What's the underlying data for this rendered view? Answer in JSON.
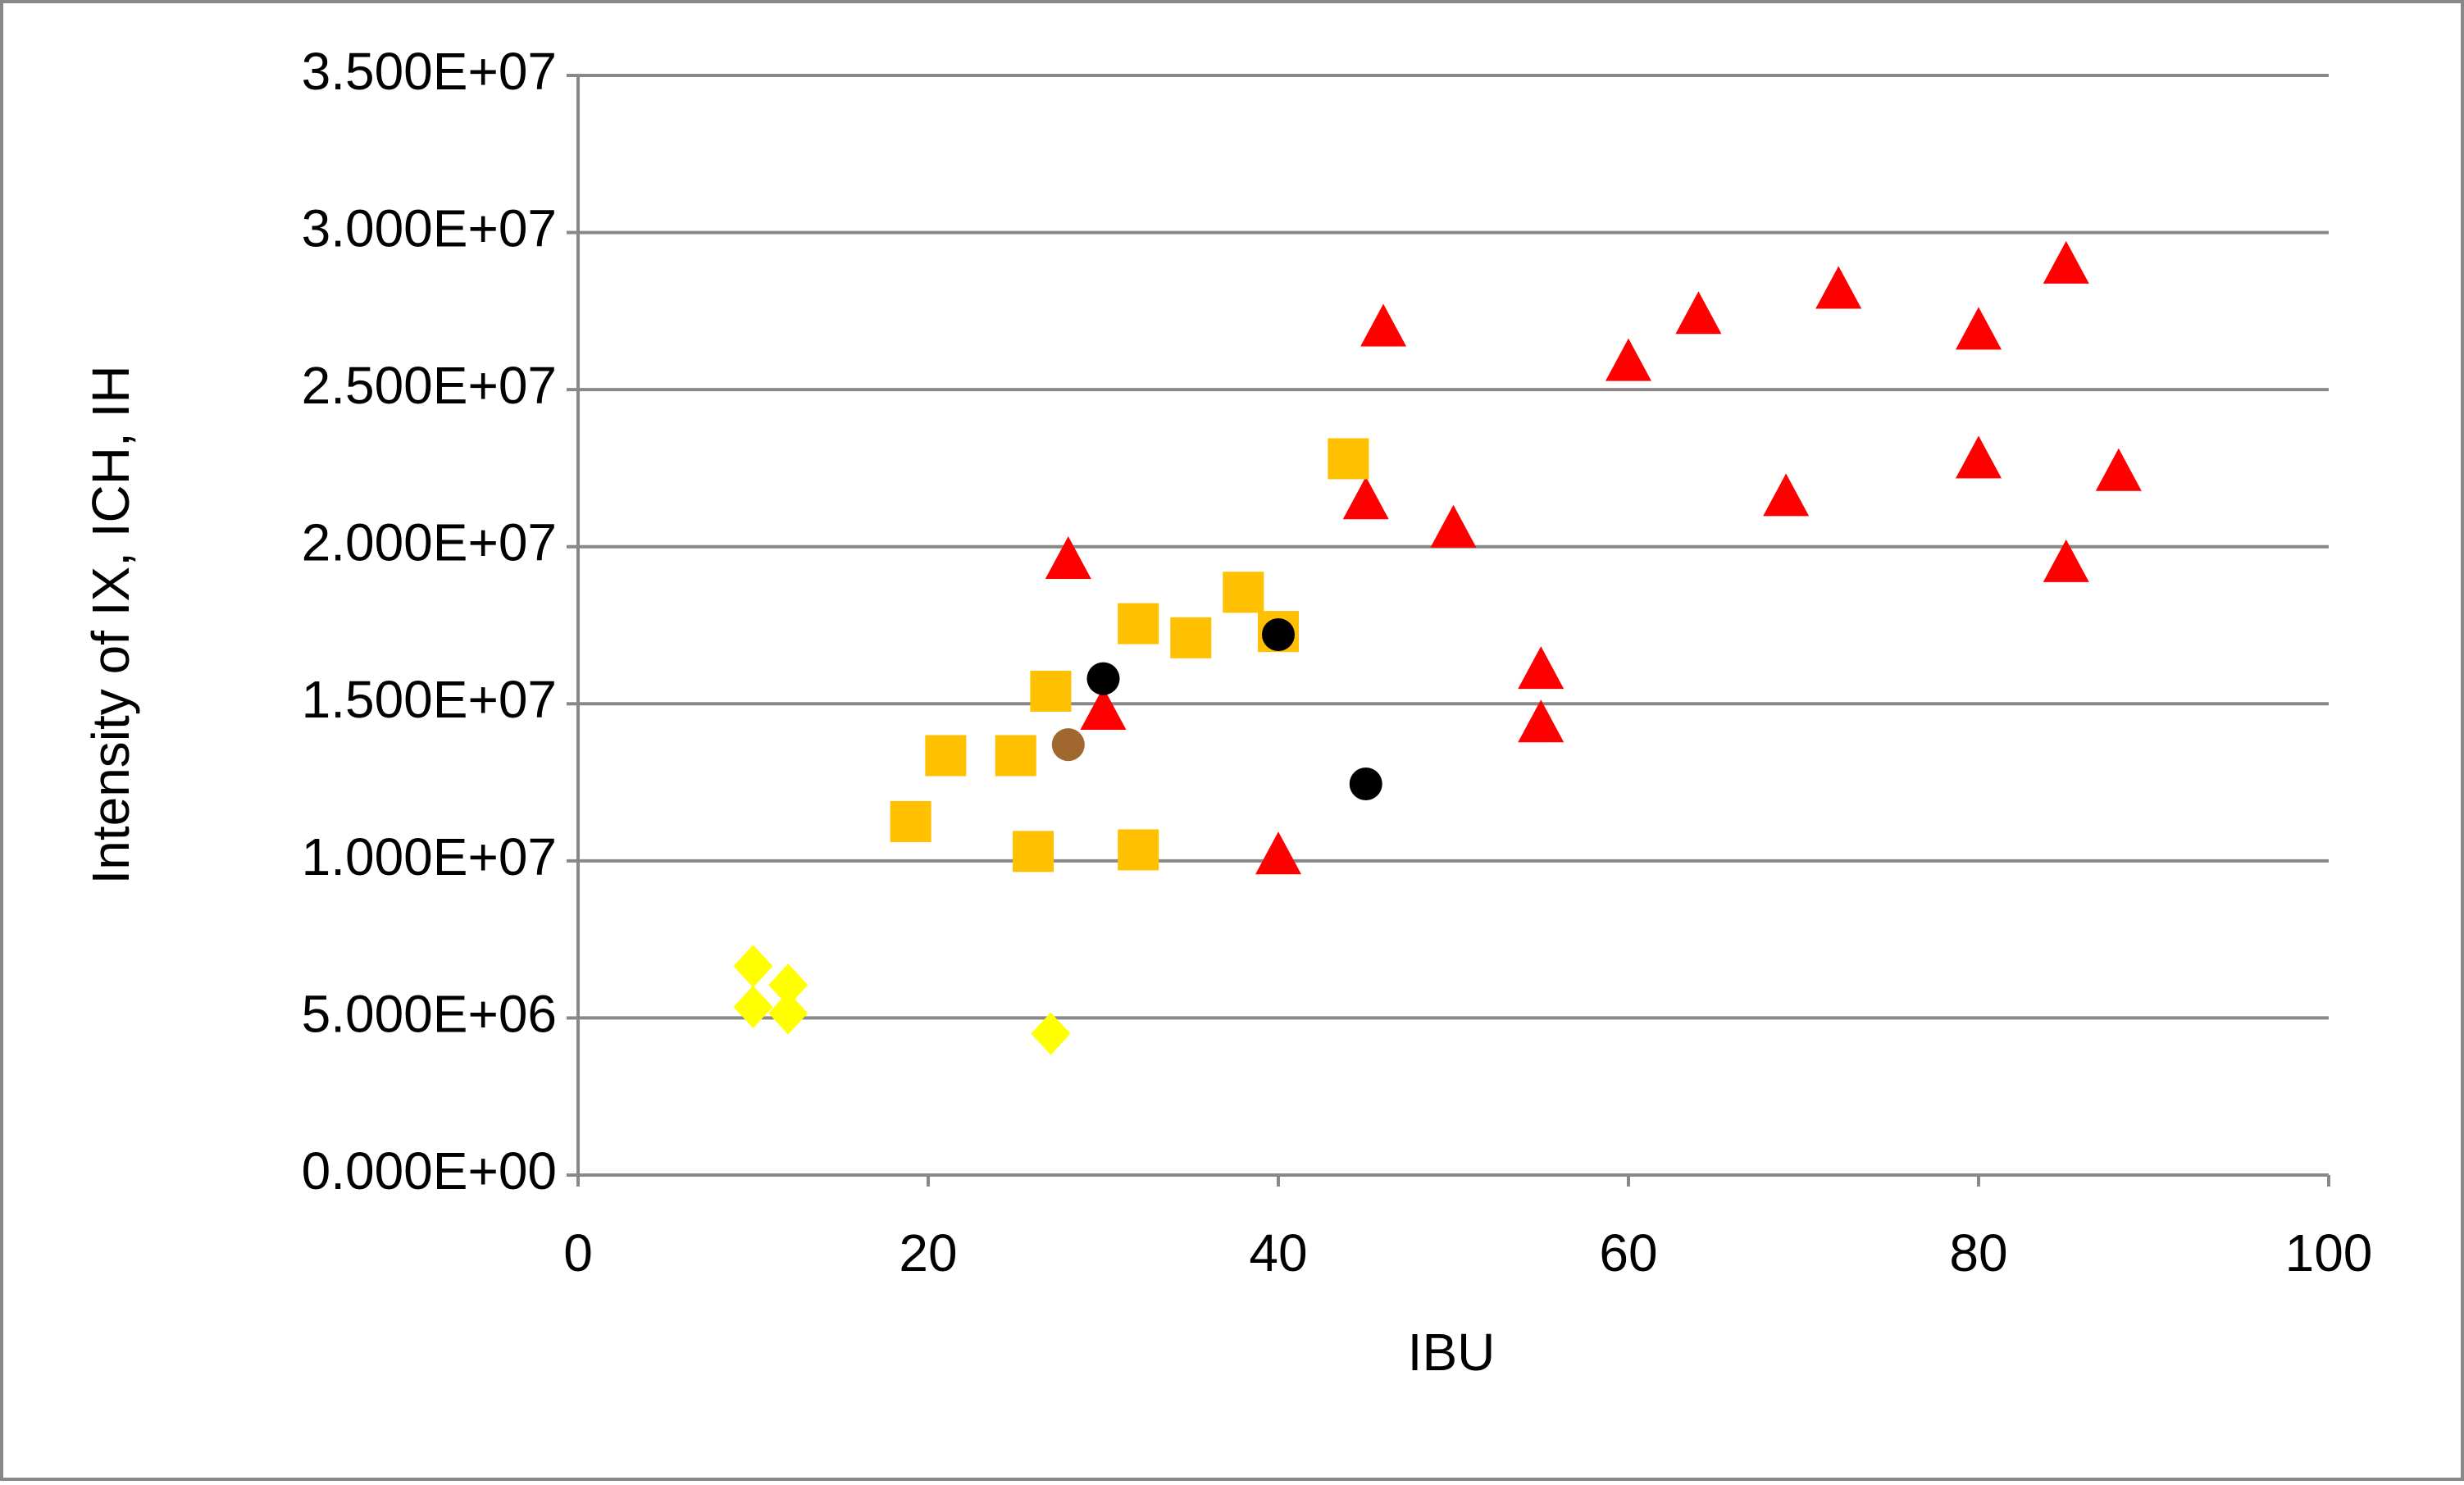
{
  "chart_data": {
    "type": "scatter",
    "xlabel": "IBU",
    "ylabel": "Intensity of IX, ICH, IH",
    "xlim": [
      0,
      100
    ],
    "xticks": [
      0,
      20,
      40,
      60,
      80,
      100
    ],
    "ylim": [
      0,
      35000000
    ],
    "yticks": [
      {
        "value": 0,
        "label": "0.000E+00"
      },
      {
        "value": 5000000,
        "label": "5.000E+06"
      },
      {
        "value": 10000000,
        "label": "1.000E+07"
      },
      {
        "value": 15000000,
        "label": "1.500E+07"
      },
      {
        "value": 20000000,
        "label": "2.000E+07"
      },
      {
        "value": 25000000,
        "label": "2.500E+07"
      },
      {
        "value": 30000000,
        "label": "3.000E+07"
      },
      {
        "value": 35000000,
        "label": "3.500E+07"
      }
    ],
    "grid": true,
    "series": [
      {
        "color": "#ff0000",
        "marker": "triangle",
        "x": [
          28,
          30,
          40,
          45,
          46,
          50,
          55,
          55,
          60,
          64,
          69,
          72,
          80,
          80,
          85,
          85,
          88
        ],
        "y": [
          19600000,
          14800000,
          10200000,
          21500000,
          27000000,
          20600000,
          16100000,
          14400000,
          25900000,
          27400000,
          21600000,
          28200000,
          26900000,
          22800000,
          29000000,
          19500000,
          22400000
        ]
      },
      {
        "color": "#ffc000",
        "marker": "square",
        "x": [
          19,
          21,
          25,
          26,
          27,
          32,
          32,
          35,
          38,
          40,
          44
        ],
        "y": [
          11250000,
          13350000,
          13350000,
          10300000,
          15400000,
          17550000,
          10350000,
          17100000,
          18550000,
          17300000,
          22800000
        ]
      },
      {
        "color": "#ffff00",
        "marker": "diamond",
        "x": [
          10,
          10,
          12,
          12,
          27
        ],
        "y": [
          6650000,
          5350000,
          6050000,
          5150000,
          4500000
        ]
      },
      {
        "color": "#000000",
        "marker": "circle",
        "x": [
          30,
          40,
          45
        ],
        "y": [
          15800000,
          17200000,
          12450000
        ]
      },
      {
        "color": "#a0682f",
        "marker": "circle",
        "x": [
          28
        ],
        "y": [
          13700000
        ]
      }
    ]
  }
}
